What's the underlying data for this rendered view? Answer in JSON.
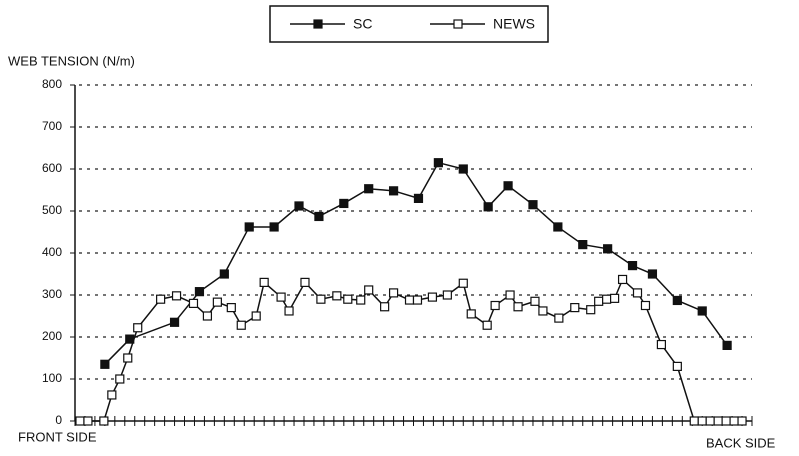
{
  "chart_data": {
    "type": "line",
    "y_label": "WEB TENSION (N/m)",
    "x_start_label": "FRONT SIDE",
    "x_end_label": "BACK SIDE",
    "xlim": [
      0,
      68
    ],
    "xticks": [
      0,
      1,
      2,
      3,
      4,
      5,
      6,
      7,
      8,
      9,
      10,
      11,
      12,
      13,
      14,
      15,
      16,
      17,
      18,
      19,
      20,
      21,
      22,
      23,
      24,
      25,
      26,
      27,
      28,
      29,
      30,
      31,
      32,
      33,
      34,
      35,
      36,
      37,
      38,
      39,
      40,
      41,
      42,
      43,
      44,
      45,
      46,
      47,
      48,
      49,
      50,
      51,
      52,
      53,
      54,
      55,
      56,
      57,
      58,
      59,
      60,
      61,
      62,
      63,
      64,
      65,
      66,
      67,
      68
    ],
    "ylim": [
      0,
      800
    ],
    "yticks": [
      0,
      100,
      200,
      300,
      400,
      500,
      600,
      700,
      800
    ],
    "grid": true,
    "legend": "top",
    "series": [
      {
        "name": "SC",
        "color": "#111111",
        "marker": "filled-square",
        "x": [
          3,
          5.5,
          10,
          12.5,
          15,
          17.5,
          20,
          22.5,
          24.5,
          27,
          29.5,
          32,
          34.5,
          36.5,
          39,
          41.5,
          43.5,
          46,
          48.5,
          51,
          53.5,
          56,
          58,
          60.5,
          63,
          65.5
        ],
        "values": [
          135,
          195,
          235,
          308,
          350,
          462,
          462,
          512,
          487,
          518,
          553,
          548,
          530,
          615,
          600,
          510,
          560,
          515,
          462,
          420,
          410,
          370,
          350,
          287,
          262,
          180
        ]
      },
      {
        "name": "NEWS",
        "color": "#111111",
        "marker": "open-square",
        "x": [
          0.5,
          1.3,
          2.9,
          3.7,
          4.5,
          5.3,
          6.3,
          8.6,
          10.2,
          11.9,
          13.3,
          14.3,
          15.7,
          16.7,
          18.2,
          19,
          20.7,
          21.5,
          23.1,
          24.7,
          26.3,
          27.4,
          28.7,
          29.5,
          31.1,
          32,
          33.6,
          34.4,
          35.9,
          37.4,
          39,
          39.8,
          41.4,
          42.2,
          43.7,
          44.5,
          46.2,
          47,
          48.6,
          50.2,
          51.8,
          52.6,
          53.4,
          54.2,
          55,
          56.5,
          57.3,
          58.9,
          60.5,
          62.2,
          63,
          63.8,
          64.6,
          65.4,
          66.2,
          67
        ],
        "values": [
          0,
          0,
          0,
          62,
          100,
          150,
          222,
          290,
          298,
          280,
          250,
          283,
          270,
          228,
          250,
          330,
          295,
          262,
          330,
          290,
          298,
          290,
          288,
          312,
          272,
          305,
          288,
          288,
          295,
          300,
          328,
          255,
          228,
          275,
          300,
          272,
          285,
          262,
          245,
          270,
          265,
          285,
          290,
          292,
          337,
          305,
          275,
          182,
          130,
          0,
          0,
          0,
          0,
          0,
          0,
          0
        ]
      }
    ]
  }
}
